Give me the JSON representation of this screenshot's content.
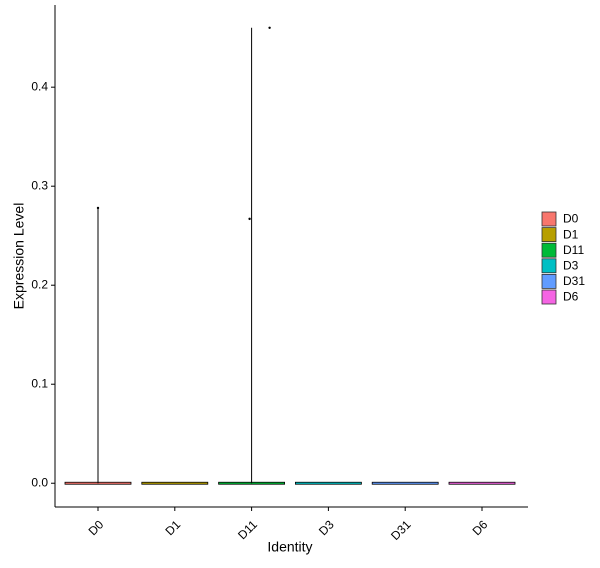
{
  "chart_data": {
    "type": "violin",
    "x_label": "Identity",
    "y_label": "Expression Level",
    "categories": [
      "D0",
      "D1",
      "D11",
      "D3",
      "D31",
      "D6"
    ],
    "ylim": [
      -0.024,
      0.483
    ],
    "yticks": [
      {
        "value": 0,
        "label": "0.0"
      },
      0.1,
      0.2,
      0.3,
      0.4
    ],
    "series": [
      {
        "name": "D0",
        "color": "#F8766D",
        "max": 0.278,
        "values": [
          0.278
        ]
      },
      {
        "name": "D1",
        "color": "#B79F00",
        "max": 0,
        "values": []
      },
      {
        "name": "D11",
        "color": "#00BA38",
        "max": 0.46,
        "values": [
          0.267,
          0.46
        ]
      },
      {
        "name": "D3",
        "color": "#00BFC4",
        "max": 0,
        "values": []
      },
      {
        "name": "D31",
        "color": "#619CFF",
        "max": 0,
        "values": []
      },
      {
        "name": "D6",
        "color": "#F564E3",
        "max": 0,
        "values": []
      }
    ]
  }
}
